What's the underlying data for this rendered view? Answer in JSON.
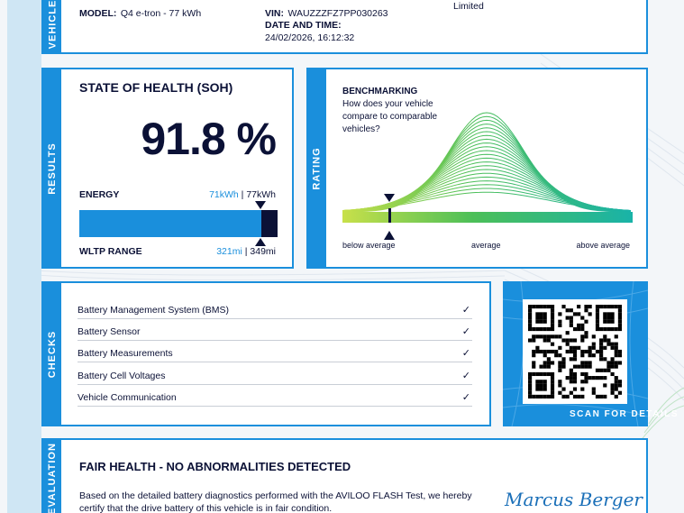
{
  "vehicle": {
    "tab": "VEHICLE",
    "model_label": "MODEL:",
    "model_value": "Q4 e-tron - 77 kWh",
    "vin_label": "VIN:",
    "vin_value": "WAUZZZFZ7PP030263",
    "date_label": "DATE AND TIME:",
    "date_value": "24/02/2026, 16:12:32",
    "right_value": "Limited"
  },
  "results": {
    "tab": "RESULTS",
    "title": "STATE OF HEALTH (SOH)",
    "soh_value": "91.8 %",
    "soh_fraction": 0.918,
    "energy_label": "ENERGY",
    "energy_current": "71kWh",
    "energy_sep": " | ",
    "energy_max": "77kWh",
    "range_label": "WLTP RANGE",
    "range_current": "321mi",
    "range_max": "349mi"
  },
  "rating": {
    "tab": "RATING",
    "title": "BENCHMARKING",
    "subtitle": "How does your vehicle compare to comparable vehicles?",
    "label_below": "below average",
    "label_avg": "average",
    "label_above": "above average"
  },
  "checks": {
    "tab": "CHECKS",
    "items": [
      "Battery Management System (BMS)",
      "Battery Sensor",
      "Battery Measurements",
      "Battery Cell Voltages",
      "Vehicle Communication"
    ]
  },
  "qr": {
    "label": "SCAN FOR DETAILS"
  },
  "evaluation": {
    "tab": "EVALUATION",
    "title": "FAIR HEALTH - NO ABNORMALITIES DETECTED",
    "text_line1": "Based on the detailed battery diagnostics performed with the AVILOO FLASH Test, we hereby",
    "text_line2": "certify that the drive battery of this vehicle is in fair condition.",
    "signature": "Marcus Berger"
  },
  "colors": {
    "accent": "#1a8fdc",
    "navy": "#0b1136",
    "bar": "#1a8fdc"
  }
}
